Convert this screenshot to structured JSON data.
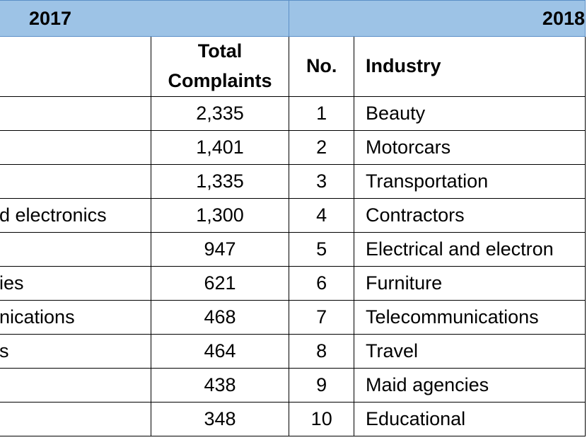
{
  "years": {
    "y2017": "2017",
    "y2018": "2018"
  },
  "headers": {
    "industry_2017": "",
    "total_complaints": [
      "Total",
      "Complaints"
    ],
    "no": "No.",
    "industry_2018": "Industry"
  },
  "rows": [
    {
      "industry_2017": "",
      "total": "2,335",
      "no": "1",
      "industry_2018": "Beauty"
    },
    {
      "industry_2017": "",
      "total": "1,401",
      "no": "2",
      "industry_2018": "Motorcars"
    },
    {
      "industry_2017": "",
      "total": "1,335",
      "no": "3",
      "industry_2018": "Transportation"
    },
    {
      "industry_2017": "d electronics",
      "total": "1,300",
      "no": "4",
      "industry_2018": "Contractors"
    },
    {
      "industry_2017": "",
      "total": "947",
      "no": "5",
      "industry_2018": "Electrical and electron"
    },
    {
      "industry_2017": "ies",
      "total": "621",
      "no": "6",
      "industry_2018": "Furniture"
    },
    {
      "industry_2017": "nications",
      "total": "468",
      "no": "7",
      "industry_2018": "Telecommunications"
    },
    {
      "industry_2017": "s",
      "total": "464",
      "no": "8",
      "industry_2018": "Travel"
    },
    {
      "industry_2017": "",
      "total": "438",
      "no": "9",
      "industry_2018": "Maid agencies"
    },
    {
      "industry_2017": "",
      "total": "348",
      "no": "10",
      "industry_2018": "Educational"
    }
  ]
}
